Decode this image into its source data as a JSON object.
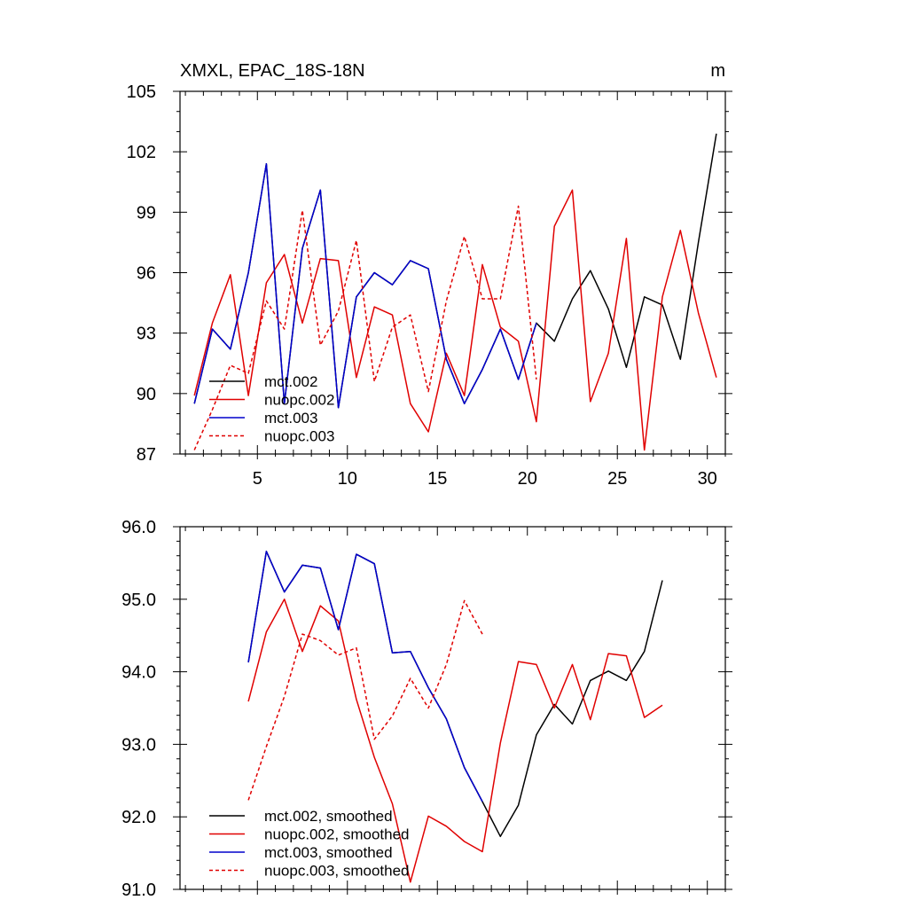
{
  "colors": {
    "mct.002": "#000000",
    "nuopc.002": "#e00000",
    "mct.003": "#0000cc",
    "nuopc.003": "#e00000"
  },
  "chart_data": [
    {
      "type": "line",
      "title": "XMXL, EPAC_18S-18N",
      "units": "m",
      "xlim": [
        0.7,
        31.0
      ],
      "ylim": [
        87,
        105
      ],
      "x_ticks": [
        5,
        10,
        15,
        20,
        25,
        30
      ],
      "x_tick_labels": [
        "5",
        "10",
        "15",
        "20",
        "25",
        "30"
      ],
      "y_ticks": [
        87,
        90,
        93,
        96,
        99,
        102,
        105
      ],
      "y_tick_labels": [
        "87",
        "90",
        "93",
        "96",
        "99",
        "102",
        "105"
      ],
      "legend_position": "lower-left",
      "series": [
        {
          "name": "mct.002",
          "color": "#000000",
          "dash": false,
          "x": [
            1.5,
            2.5,
            3.5,
            4.5,
            5.5,
            6.5,
            7.5,
            8.5,
            9.5,
            10.5,
            11.5,
            12.5,
            13.5,
            14.5,
            15.5,
            16.5,
            17.5,
            18.5,
            19.5,
            20.5,
            21.5,
            22.5,
            23.5,
            24.5,
            25.5,
            26.5,
            27.5,
            28.5,
            29.5,
            30.5
          ],
          "values": [
            89.5,
            93.2,
            92.2,
            96.0,
            101.4,
            89.5,
            97.2,
            100.1,
            89.3,
            94.8,
            96.0,
            95.4,
            96.6,
            96.2,
            91.7,
            89.5,
            91.2,
            93.2,
            90.7,
            93.5,
            92.6,
            94.7,
            96.1,
            94.2,
            91.3,
            94.8,
            94.4,
            91.7,
            97.5,
            102.9
          ]
        },
        {
          "name": "nuopc.002",
          "color": "#e00000",
          "dash": false,
          "x": [
            1.5,
            2.5,
            3.5,
            4.5,
            5.5,
            6.5,
            7.5,
            8.5,
            9.5,
            10.5,
            11.5,
            12.5,
            13.5,
            14.5,
            15.5,
            16.5,
            17.5,
            18.5,
            19.5,
            20.5,
            21.5,
            22.5,
            23.5,
            24.5,
            25.5,
            26.5,
            27.5,
            28.5,
            29.5,
            30.5
          ],
          "values": [
            89.9,
            93.5,
            95.9,
            89.9,
            95.5,
            96.9,
            93.5,
            96.7,
            96.6,
            90.8,
            94.3,
            93.9,
            89.5,
            88.1,
            92.0,
            89.9,
            96.4,
            93.3,
            92.6,
            88.6,
            98.3,
            100.1,
            89.6,
            92.0,
            97.7,
            87.2,
            94.8,
            98.1,
            94.0,
            90.8
          ]
        },
        {
          "name": "mct.003",
          "color": "#0000cc",
          "dash": false,
          "x": [
            1.5,
            2.5,
            3.5,
            4.5,
            5.5,
            6.5,
            7.5,
            8.5,
            9.5,
            10.5,
            11.5,
            12.5,
            13.5,
            14.5,
            15.5,
            16.5,
            17.5,
            18.5,
            19.5,
            20.5
          ],
          "values": [
            89.5,
            93.2,
            92.2,
            96.0,
            101.4,
            89.5,
            97.2,
            100.1,
            89.3,
            94.8,
            96.0,
            95.4,
            96.6,
            96.2,
            91.7,
            89.5,
            91.2,
            93.2,
            90.7,
            93.5
          ]
        },
        {
          "name": "nuopc.003",
          "color": "#e00000",
          "dash": true,
          "x": [
            1.5,
            2.5,
            3.5,
            4.5,
            5.5,
            6.5,
            7.5,
            8.5,
            9.5,
            10.5,
            11.5,
            12.5,
            13.5,
            14.5,
            15.5,
            16.5,
            17.5,
            18.5,
            19.5,
            20.5
          ],
          "values": [
            87.2,
            89.2,
            91.4,
            91.0,
            94.6,
            93.2,
            99.1,
            92.4,
            94.1,
            97.6,
            90.6,
            93.3,
            93.9,
            90.1,
            94.6,
            97.8,
            94.7,
            94.7,
            99.3,
            90.7
          ]
        }
      ]
    },
    {
      "type": "line",
      "title": "",
      "xlim": [
        0.7,
        31.0
      ],
      "ylim": [
        91.0,
        96.0
      ],
      "x_ticks": [
        5,
        10,
        15,
        20,
        25,
        30
      ],
      "x_tick_labels": [
        "",
        "",
        "",
        "",
        "",
        ""
      ],
      "y_ticks": [
        91.0,
        92.0,
        93.0,
        94.0,
        95.0,
        96.0
      ],
      "y_tick_labels": [
        "91.0",
        "92.0",
        "93.0",
        "94.0",
        "95.0",
        "96.0"
      ],
      "legend_position": "lower-left",
      "series": [
        {
          "name": "mct.002, smoothed",
          "color": "#000000",
          "dash": false,
          "x": [
            4.5,
            5.5,
            6.5,
            7.5,
            8.5,
            9.5,
            10.5,
            11.5,
            12.5,
            13.5,
            14.5,
            15.5,
            16.5,
            17.5,
            18.5,
            19.5,
            20.5,
            21.5,
            22.5,
            23.5,
            24.5,
            25.5,
            26.5,
            27.5
          ],
          "values": [
            94.13,
            95.66,
            95.1,
            95.47,
            95.43,
            94.58,
            95.62,
            95.49,
            94.26,
            94.28,
            93.78,
            93.35,
            92.68,
            92.21,
            91.73,
            92.16,
            93.13,
            93.55,
            93.28,
            93.88,
            94.01,
            93.88,
            94.28,
            95.26
          ]
        },
        {
          "name": "nuopc.002, smoothed",
          "color": "#e00000",
          "dash": false,
          "x": [
            4.5,
            5.5,
            6.5,
            7.5,
            8.5,
            9.5,
            10.5,
            11.5,
            12.5,
            13.5,
            14.5,
            15.5,
            16.5,
            17.5,
            18.5,
            19.5,
            20.5,
            21.5,
            22.5,
            23.5,
            24.5,
            25.5,
            26.5,
            27.5
          ],
          "values": [
            93.59,
            94.55,
            95.0,
            94.28,
            94.91,
            94.7,
            93.62,
            92.82,
            92.18,
            91.1,
            92.01,
            91.87,
            91.66,
            91.52,
            93.02,
            94.14,
            94.1,
            93.5,
            94.1,
            93.34,
            94.25,
            94.22,
            93.37,
            93.54
          ]
        },
        {
          "name": "mct.003, smoothed",
          "color": "#0000cc",
          "dash": false,
          "x": [
            4.5,
            5.5,
            6.5,
            7.5,
            8.5,
            9.5,
            10.5,
            11.5,
            12.5,
            13.5,
            14.5,
            15.5,
            16.5,
            17.5
          ],
          "values": [
            94.13,
            95.66,
            95.1,
            95.47,
            95.43,
            94.58,
            95.62,
            95.49,
            94.26,
            94.28,
            93.78,
            93.35,
            92.68,
            92.21
          ]
        },
        {
          "name": "nuopc.003, smoothed",
          "color": "#e00000",
          "dash": true,
          "x": [
            4.5,
            5.5,
            6.5,
            7.5,
            8.5,
            9.5,
            10.5,
            11.5,
            12.5,
            13.5,
            14.5,
            15.5,
            16.5,
            17.5
          ],
          "values": [
            92.23,
            92.97,
            93.66,
            94.52,
            94.43,
            94.23,
            94.33,
            93.07,
            93.39,
            93.91,
            93.5,
            94.1,
            94.98,
            94.52
          ]
        }
      ]
    }
  ]
}
